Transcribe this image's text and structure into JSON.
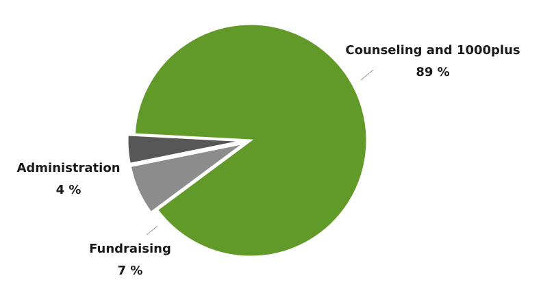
{
  "chart_data": {
    "type": "pie",
    "categories": [
      "Counseling and 1000plus",
      "Fundraising",
      "Administration"
    ],
    "values": [
      89,
      7,
      4
    ],
    "value_labels": [
      "89 %",
      "7 %",
      "4 %"
    ],
    "colors": [
      "#629a2a",
      "#8c8c8c",
      "#575757"
    ]
  }
}
